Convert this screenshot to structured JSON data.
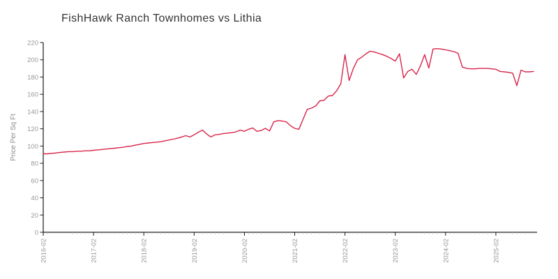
{
  "title": "FishHawk Ranch Townhomes vs Lithia",
  "colors": {
    "line": "#d8244a",
    "axis": "#1a1a1a",
    "minor_tick": "#b3b3b3",
    "tick_label": "#999999",
    "axis_label": "#8c8c8c",
    "title_text": "#333333",
    "background": "#ffffff"
  },
  "chart_data": {
    "type": "line",
    "title": "FishHawk Ranch Townhomes vs Lithia",
    "xlabel": "",
    "ylabel": "Price Per Sq Ft",
    "ylim": [
      0,
      220
    ],
    "y_tick_step": 20,
    "grid": false,
    "legend": "none",
    "x_tick_labels": [
      "2016-02",
      "2017-02",
      "2018-02",
      "2019-02",
      "2020-02",
      "2021-02",
      "2022-02",
      "2023-02",
      "2024-02",
      "2025-02"
    ],
    "x": [
      "2016-02",
      "2016-03",
      "2016-04",
      "2016-05",
      "2016-06",
      "2016-07",
      "2016-08",
      "2016-09",
      "2016-10",
      "2016-11",
      "2016-12",
      "2017-01",
      "2017-02",
      "2017-03",
      "2017-04",
      "2017-05",
      "2017-06",
      "2017-07",
      "2017-08",
      "2017-09",
      "2017-10",
      "2017-11",
      "2017-12",
      "2018-01",
      "2018-02",
      "2018-03",
      "2018-04",
      "2018-05",
      "2018-06",
      "2018-07",
      "2018-08",
      "2018-09",
      "2018-10",
      "2018-11",
      "2018-12",
      "2019-01",
      "2019-02",
      "2019-03",
      "2019-04",
      "2019-05",
      "2019-06",
      "2019-07",
      "2019-08",
      "2019-09",
      "2019-10",
      "2019-11",
      "2019-12",
      "2020-01",
      "2020-02",
      "2020-03",
      "2020-04",
      "2020-05",
      "2020-06",
      "2020-07",
      "2020-08",
      "2020-09",
      "2020-10",
      "2020-11",
      "2020-12",
      "2021-01",
      "2021-02",
      "2021-03",
      "2021-04",
      "2021-05",
      "2021-06",
      "2021-07",
      "2021-08",
      "2021-09",
      "2021-10",
      "2021-11",
      "2021-12",
      "2022-01",
      "2022-02",
      "2022-03",
      "2022-04",
      "2022-05",
      "2022-06",
      "2022-07",
      "2022-08",
      "2022-09",
      "2022-10",
      "2022-11",
      "2022-12",
      "2023-01",
      "2023-02",
      "2023-03",
      "2023-04",
      "2023-05",
      "2023-06",
      "2023-07",
      "2023-08",
      "2023-09",
      "2023-10",
      "2023-11",
      "2023-12",
      "2024-01",
      "2024-02",
      "2024-03",
      "2024-04",
      "2024-05",
      "2024-06",
      "2024-07",
      "2024-08",
      "2024-09",
      "2024-10",
      "2024-11",
      "2024-12",
      "2025-01",
      "2025-02",
      "2025-03",
      "2025-04",
      "2025-05",
      "2025-06",
      "2025-07",
      "2025-08",
      "2025-09",
      "2025-10",
      "2025-11"
    ],
    "series": [
      {
        "name": "FishHawk Ranch Townhomes",
        "values": [
          91,
          91,
          91.5,
          92,
          92.5,
          93,
          93.5,
          93.5,
          94,
          94,
          94.5,
          94.5,
          95,
          95.5,
          96,
          96.5,
          97,
          97.5,
          98,
          98.5,
          99.5,
          100,
          101,
          102,
          103,
          103.5,
          104,
          104.5,
          105,
          106,
          107,
          108,
          109,
          110.5,
          112,
          110.5,
          113,
          116,
          118.5,
          114,
          110.5,
          113,
          113.5,
          114.5,
          115,
          115.5,
          116.5,
          118.5,
          117,
          119.5,
          121,
          117,
          118,
          120.5,
          117.5,
          128,
          129.5,
          129,
          128,
          123.5,
          120.5,
          119.5,
          131,
          142.5,
          144,
          146.5,
          152.5,
          153,
          158,
          158.5,
          164,
          172,
          206,
          176,
          190,
          200,
          203,
          207,
          210,
          209,
          207.5,
          206,
          204,
          201.5,
          198.5,
          207,
          179,
          186.5,
          189,
          183,
          193,
          206,
          190.5,
          212.5,
          213,
          212.5,
          211.5,
          210.5,
          209.5,
          207.5,
          191.5,
          190,
          189.5,
          189.5,
          190,
          190,
          190,
          189.5,
          189,
          186.5,
          186,
          185.5,
          184.5,
          170,
          188,
          186,
          186,
          186.5
        ]
      }
    ]
  }
}
